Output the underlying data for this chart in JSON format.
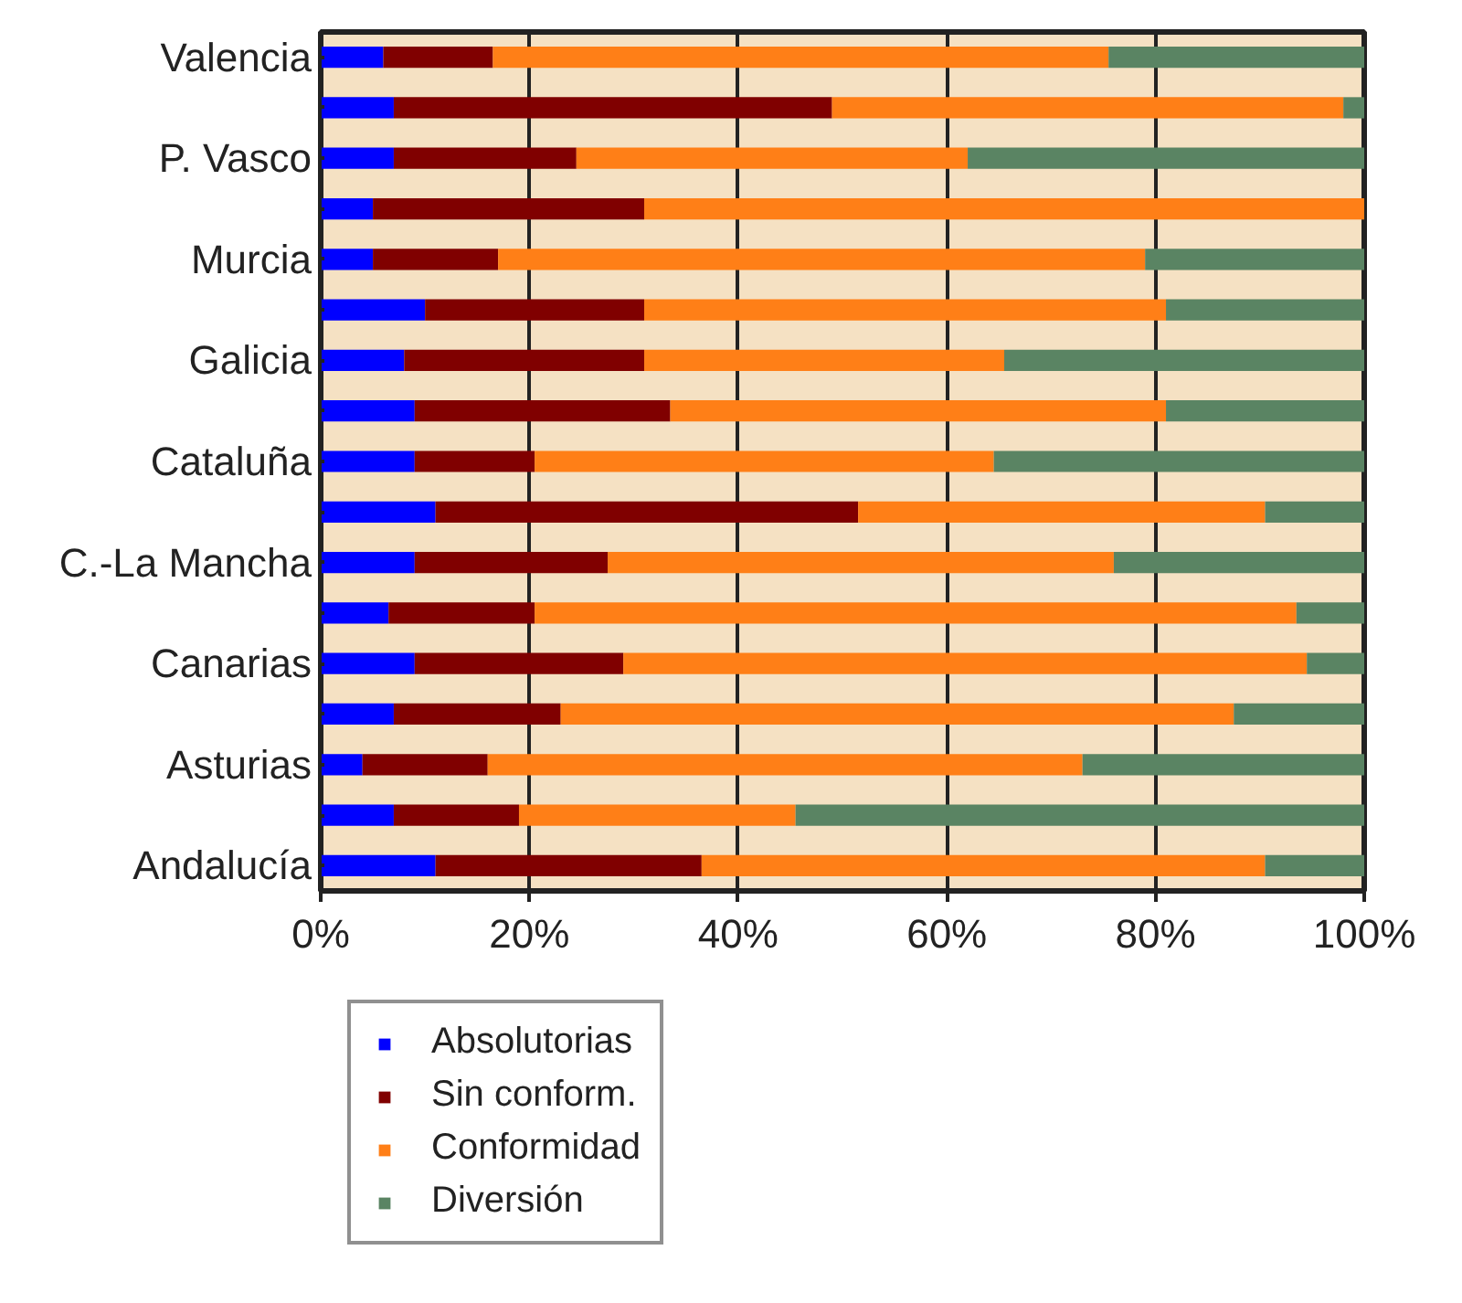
{
  "chart_data": {
    "type": "bar",
    "orientation": "horizontal",
    "stacked": true,
    "categories": [
      "Valencia",
      null,
      "P. Vasco",
      null,
      "Murcia",
      null,
      "Galicia",
      null,
      "Cataluña",
      null,
      "C.-La Mancha",
      null,
      "Canarias",
      null,
      "Asturias",
      null,
      "Andalucía"
    ],
    "series": [
      {
        "name": "Absolutorias",
        "color": "#0000ff",
        "values": [
          6,
          7,
          7,
          5,
          5,
          10,
          8,
          9,
          9,
          11,
          9,
          6.5,
          9,
          7,
          4,
          7,
          11
        ]
      },
      {
        "name": "Sin conform.",
        "color": "#800000",
        "values": [
          10.5,
          42,
          17.5,
          26,
          12,
          21,
          23,
          24.5,
          11.5,
          40.5,
          18.5,
          14,
          20,
          16,
          12,
          12,
          25.5
        ]
      },
      {
        "name": "Conformidad",
        "color": "#ff7f17",
        "values": [
          59,
          49,
          37.5,
          69,
          62,
          50,
          34.5,
          47.5,
          44,
          39,
          48.5,
          73,
          65.5,
          64.5,
          57,
          26.5,
          54
        ]
      },
      {
        "name": "Diversión",
        "color": "#5a8463",
        "values": [
          24.5,
          2,
          38,
          0,
          21,
          19,
          34.5,
          19,
          35.5,
          9.5,
          24,
          6.5,
          5.5,
          12.5,
          27,
          54.5,
          9.5
        ]
      }
    ],
    "xlim": [
      0,
      100
    ],
    "xticks": [
      {
        "value": 0,
        "label": "0%"
      },
      {
        "value": 20,
        "label": "20%"
      },
      {
        "value": 40,
        "label": "40%"
      },
      {
        "value": 60,
        "label": "60%"
      },
      {
        "value": 80,
        "label": "80%"
      },
      {
        "value": 100,
        "label": "100%"
      }
    ],
    "grid": "x",
    "legend": "bottom left"
  }
}
